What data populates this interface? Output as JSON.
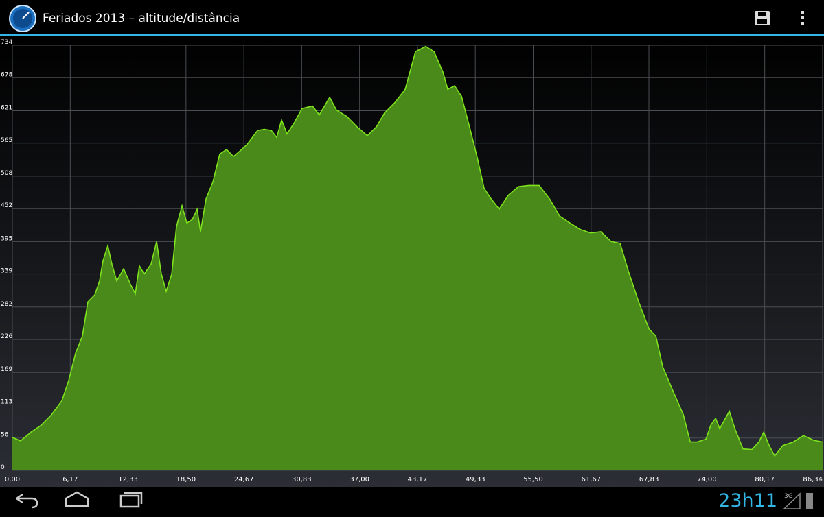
{
  "app_bar": {
    "title": "Feriados 2013 – altitude/distância"
  },
  "status_bar": {
    "time": "23h11",
    "network": "3G"
  },
  "chart_data": {
    "type": "area",
    "x": [
      0,
      0.88,
      1.98,
      3.07,
      4.17,
      5.27,
      6.0,
      6.73,
      7.46,
      8.05,
      8.78,
      9.29,
      9.66,
      10.17,
      10.61,
      11.12,
      11.86,
      12.59,
      13.1,
      13.54,
      14.05,
      14.78,
      15.37,
      15.88,
      16.39,
      16.98,
      17.49,
      18.08,
      18.59,
      19.17,
      19.69,
      20.05,
      20.64,
      21.37,
      22.1,
      22.83,
      23.56,
      24.3,
      25.03,
      26.13,
      26.86,
      27.59,
      28.17,
      28.69,
      29.27,
      30.0,
      30.88,
      31.98,
      32.71,
      33.81,
      34.54,
      35.64,
      36.74,
      37.83,
      38.79,
      39.66,
      40.76,
      41.86,
      42.96,
      44.05,
      44.93,
      45.88,
      46.4,
      47.13,
      47.86,
      48.81,
      49.54,
      50.27,
      51.01,
      51.88,
      52.84,
      53.93,
      55.03,
      56.13,
      57.23,
      58.32,
      59.42,
      60.52,
      61.62,
      62.71,
      63.81,
      64.76,
      65.64,
      66.74,
      67.84,
      68.57,
      69.3,
      70.4,
      71.5,
      72.23,
      72.96,
      73.91,
      74.42,
      74.94,
      75.37,
      76.4,
      76.99,
      77.86,
      78.81,
      79.55,
      80.06,
      80.64,
      81.23,
      82.11,
      83.21,
      84.3,
      85.4,
      86.34
    ],
    "values": [
      57,
      51,
      66,
      78,
      96,
      120,
      155,
      202,
      232,
      291,
      303,
      327,
      362,
      388,
      356,
      327,
      348,
      321,
      305,
      353,
      339,
      356,
      395,
      339,
      309,
      339,
      421,
      457,
      427,
      433,
      451,
      412,
      469,
      498,
      546,
      554,
      542,
      552,
      563,
      587,
      589,
      587,
      575,
      605,
      581,
      599,
      625,
      629,
      614,
      644,
      622,
      611,
      593,
      578,
      593,
      617,
      635,
      658,
      723,
      732,
      723,
      688,
      658,
      664,
      646,
      587,
      540,
      487,
      469,
      451,
      475,
      490,
      492,
      492,
      469,
      439,
      427,
      416,
      410,
      412,
      395,
      392,
      344,
      291,
      244,
      232,
      179,
      137,
      96,
      49,
      49,
      54,
      78,
      90,
      72,
      102,
      72,
      37,
      36,
      49,
      66,
      43,
      25,
      43,
      49,
      60,
      52,
      49
    ],
    "color": "#4a8a1a",
    "line_color": "#7ee21c",
    "xlim": [
      0,
      86.34
    ],
    "ylim": [
      0,
      734
    ],
    "xticks": [
      {
        "value": 0,
        "label": "0,00"
      },
      {
        "value": 6.17,
        "label": "6,17"
      },
      {
        "value": 12.33,
        "label": "12,33"
      },
      {
        "value": 18.5,
        "label": "18,50"
      },
      {
        "value": 24.67,
        "label": "24,67"
      },
      {
        "value": 30.83,
        "label": "30,83"
      },
      {
        "value": 37,
        "label": "37,00"
      },
      {
        "value": 43.17,
        "label": "43,17"
      },
      {
        "value": 49.33,
        "label": "49,33"
      },
      {
        "value": 55.5,
        "label": "55,50"
      },
      {
        "value": 61.67,
        "label": "61,67"
      },
      {
        "value": 67.83,
        "label": "67,83"
      },
      {
        "value": 74,
        "label": "74,00"
      },
      {
        "value": 80.17,
        "label": "80,17"
      },
      {
        "value": 86.34,
        "label": "86,34"
      }
    ],
    "yticks": [
      0,
      56,
      113,
      169,
      226,
      282,
      339,
      395,
      452,
      508,
      565,
      621,
      678,
      734
    ],
    "grid": true
  }
}
